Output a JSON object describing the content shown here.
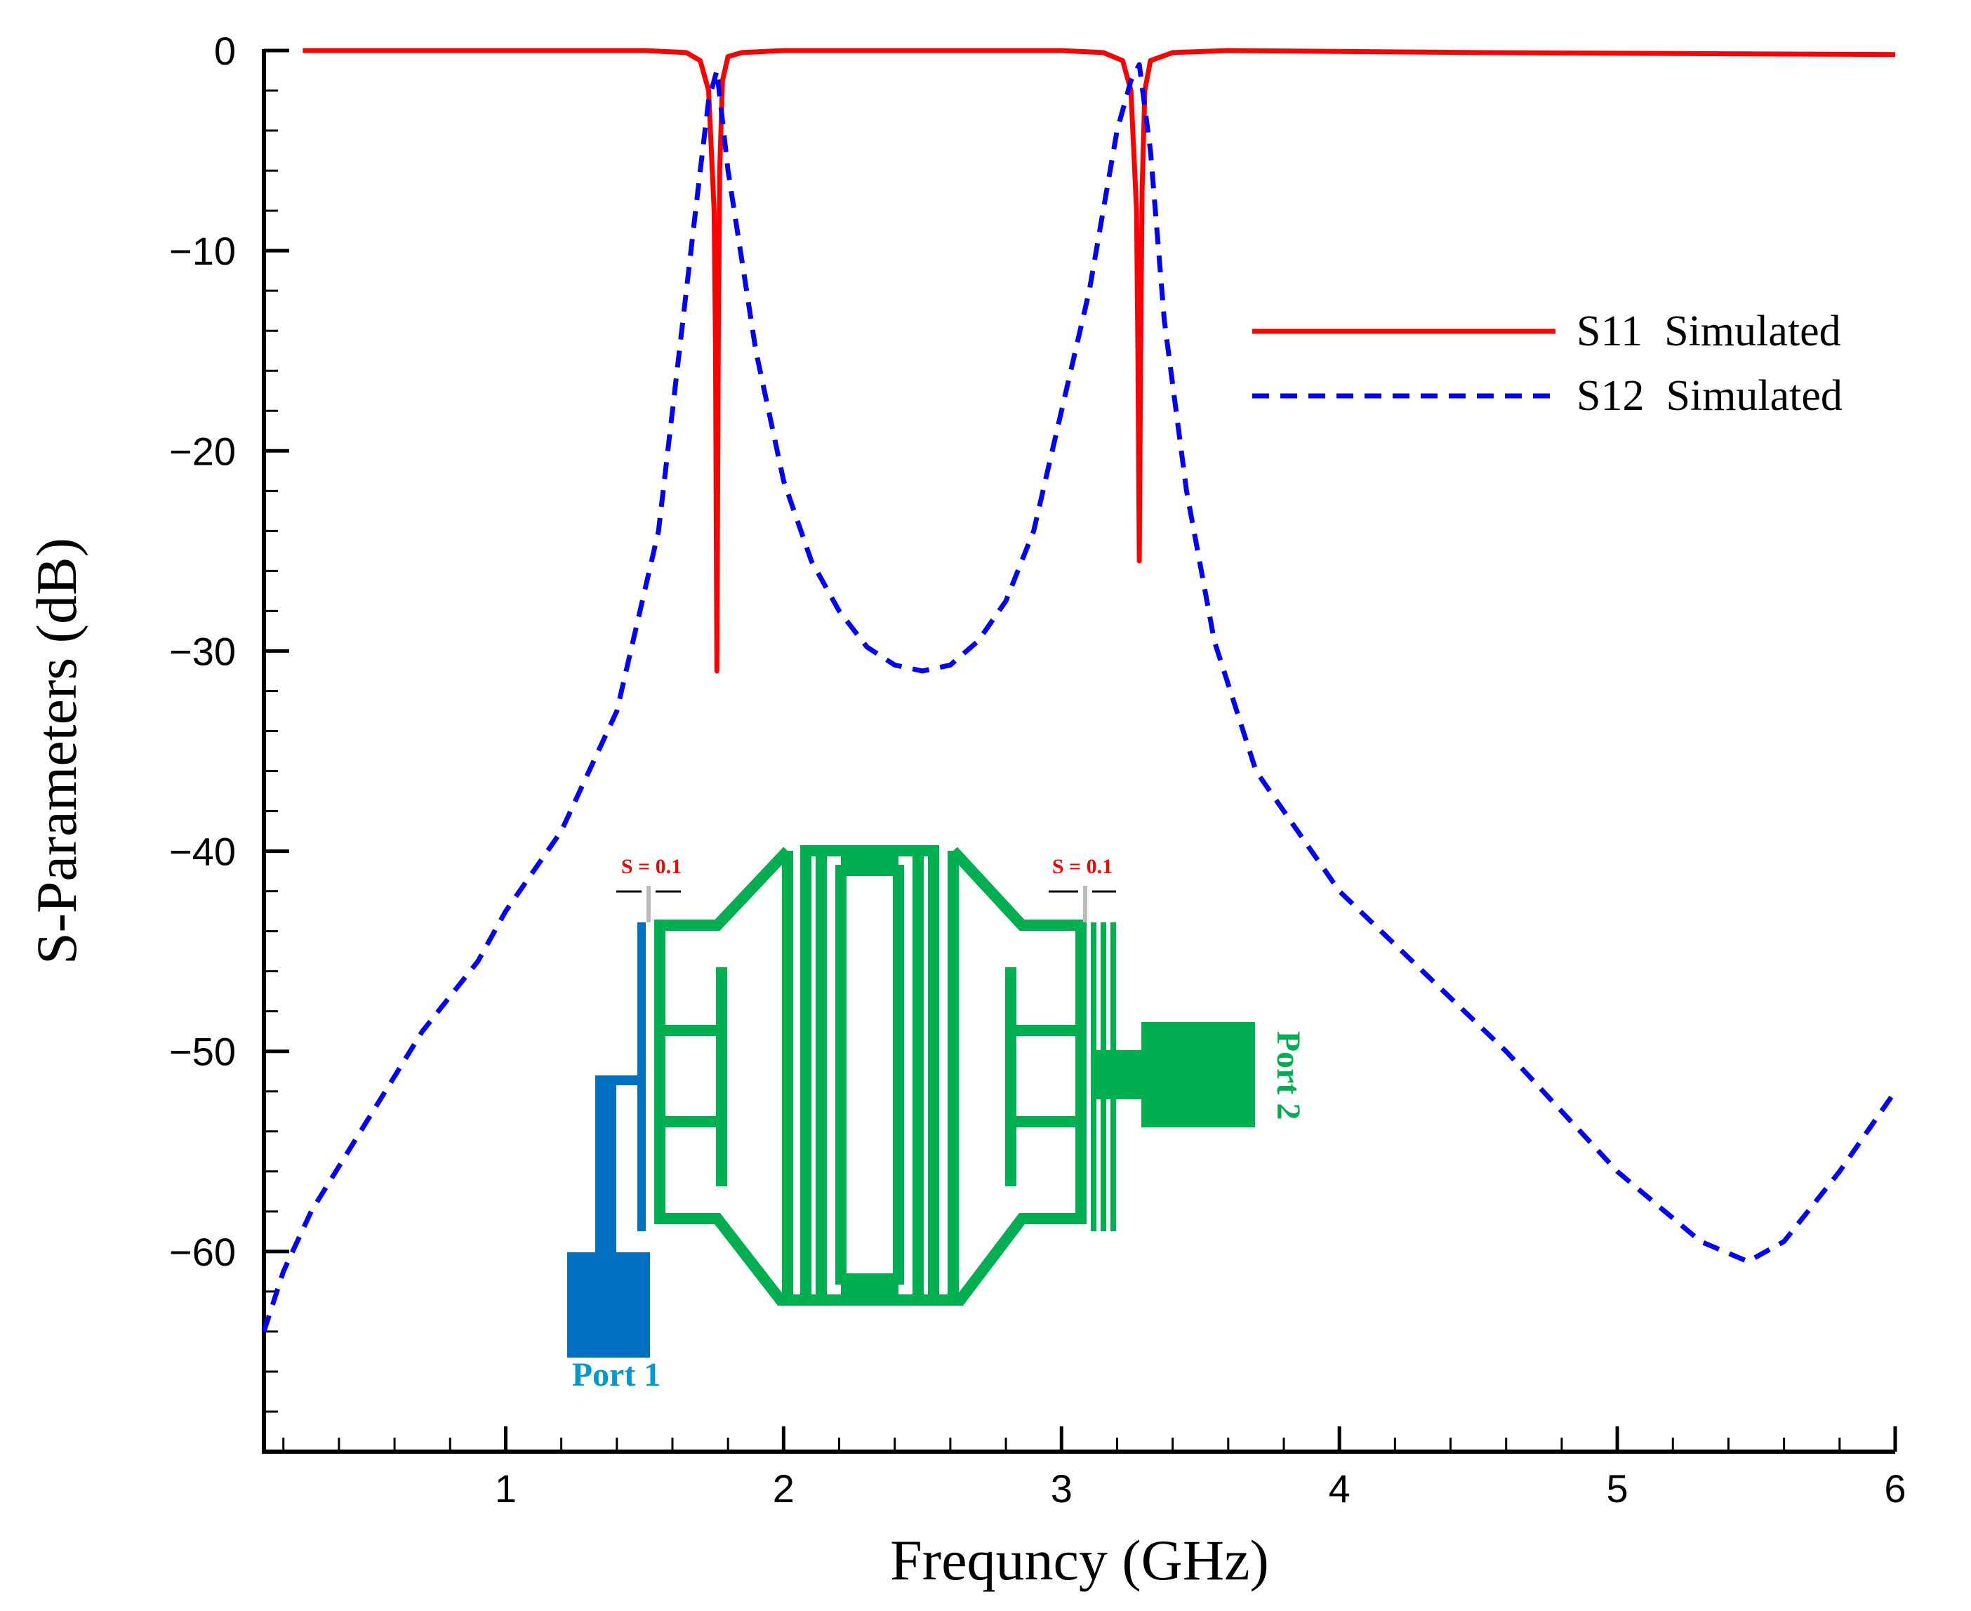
{
  "chart_data": {
    "type": "line",
    "title": "",
    "xlabel": "Frequncy (GHz)",
    "ylabel": "S-Parameters (dB)",
    "xlim": [
      0.13,
      6.0
    ],
    "ylim": [
      -70,
      0
    ],
    "x_ticks": [
      1,
      2,
      3,
      4,
      5,
      6
    ],
    "x_tick_labels": [
      "1",
      "2",
      "3",
      "4",
      "5",
      "6"
    ],
    "y_ticks": [
      0,
      -10,
      -20,
      -30,
      -40,
      -50,
      -60
    ],
    "y_tick_labels": [
      "0",
      "−10",
      "−20",
      "−30",
      "−40",
      "−50",
      "−60"
    ],
    "grid": false,
    "legend_position": "top-right",
    "series": [
      {
        "name": "S11  Simulated",
        "color": "#ff0000",
        "style": "solid",
        "x": [
          0.27,
          1.0,
          1.5,
          1.65,
          1.7,
          1.73,
          1.75,
          1.755,
          1.76,
          1.765,
          1.77,
          1.78,
          1.8,
          1.85,
          2.0,
          2.5,
          3.0,
          3.15,
          3.22,
          3.25,
          3.27,
          3.275,
          3.28,
          3.285,
          3.29,
          3.3,
          3.32,
          3.4,
          3.6,
          4.5,
          6.0
        ],
        "y": [
          0,
          0,
          0,
          -0.1,
          -0.5,
          -2,
          -8,
          -15,
          -31,
          -15,
          -6,
          -1.5,
          -0.3,
          -0.1,
          0,
          0,
          0,
          -0.1,
          -0.5,
          -2,
          -8,
          -15,
          -25.5,
          -15,
          -7,
          -2,
          -0.5,
          -0.1,
          0,
          -0.1,
          -0.2
        ]
      },
      {
        "name": "S12  Simulated",
        "color": "#0000ff",
        "style": "dashed",
        "x": [
          0.13,
          0.2,
          0.3,
          0.5,
          0.7,
          0.9,
          1.0,
          1.2,
          1.4,
          1.55,
          1.6,
          1.65,
          1.7,
          1.73,
          1.76,
          1.8,
          1.9,
          2.0,
          2.1,
          2.2,
          2.3,
          2.4,
          2.5,
          2.6,
          2.7,
          2.8,
          2.9,
          3.0,
          3.1,
          3.2,
          3.25,
          3.28,
          3.32,
          3.37,
          3.45,
          3.55,
          3.7,
          4.0,
          4.3,
          4.6,
          5.0,
          5.3,
          5.47,
          5.6,
          5.8,
          6.0
        ],
        "y": [
          -64,
          -61,
          -58,
          -53.5,
          -49,
          -45.5,
          -43,
          -39,
          -33,
          -24,
          -18,
          -12,
          -6,
          -2.5,
          -1,
          -6,
          -15,
          -21.5,
          -25.5,
          -28,
          -29.8,
          -30.7,
          -31,
          -30.7,
          -29.5,
          -27.5,
          -24,
          -18,
          -12,
          -4,
          -1.5,
          -0.7,
          -5,
          -13.5,
          -22,
          -29.5,
          -36,
          -42,
          -46,
          -50,
          -56,
          -59.5,
          -60.5,
          -59.5,
          -56,
          -52
        ]
      }
    ],
    "inset": {
      "description_free": true,
      "spacing_label_left": "S = 0.1",
      "spacing_label_right": "S = 0.1",
      "port1_label": "Port 1",
      "port2_label": "Port 2",
      "port1_color": "#0070c0",
      "port2_color": "#00b050",
      "spacing_color": "#ff0000"
    }
  }
}
